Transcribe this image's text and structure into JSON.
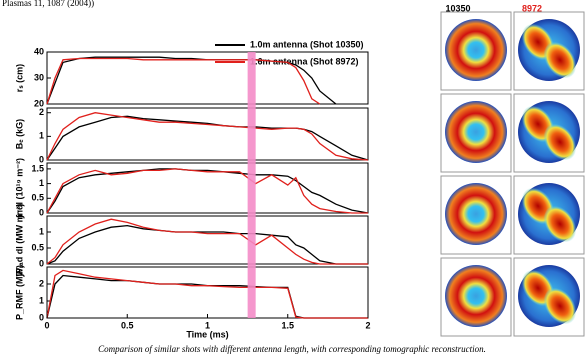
{
  "header_text": "Plasmas 11, 1087 (2004))",
  "chart_data": [
    {
      "type": "line",
      "ylabel": "rₛ (cm)",
      "x": [
        0,
        0.05,
        0.1,
        0.2,
        0.3,
        0.4,
        0.5,
        0.6,
        0.7,
        0.8,
        0.9,
        1.0,
        1.1,
        1.2,
        1.3,
        1.4,
        1.5,
        1.55,
        1.6,
        1.65,
        1.7,
        1.8,
        1.9,
        2.0
      ],
      "series": [
        {
          "name": "1.0m antenna (Shot 10350)",
          "color": "#000000",
          "values": [
            20,
            28,
            36,
            37.5,
            38,
            38,
            38,
            38,
            38,
            37.5,
            37.5,
            37,
            37,
            37,
            37,
            36.5,
            36,
            35,
            33,
            30,
            25,
            20,
            null,
            null
          ]
        },
        {
          "name": "1.6m antenna (Shot 8972)",
          "color": "#e0201c",
          "values": [
            20,
            30,
            37,
            37.5,
            37.5,
            37.5,
            37.5,
            37,
            37,
            37,
            37,
            37,
            37,
            37,
            37,
            36.5,
            36,
            34,
            29,
            22,
            20,
            null,
            null,
            null
          ]
        }
      ],
      "xlim": [
        0,
        2
      ],
      "ylim": [
        20,
        40
      ],
      "yticks": [
        20,
        30,
        40
      ],
      "shaded_xrange": [
        1.25,
        1.3
      ]
    },
    {
      "type": "line",
      "ylabel": "Bₑ (kG)",
      "x": [
        0,
        0.05,
        0.1,
        0.2,
        0.3,
        0.4,
        0.5,
        0.6,
        0.7,
        0.8,
        0.9,
        1.0,
        1.1,
        1.2,
        1.3,
        1.4,
        1.5,
        1.55,
        1.6,
        1.65,
        1.7,
        1.8,
        1.9,
        2.0
      ],
      "series": [
        {
          "color": "#000000",
          "values": [
            0,
            0.5,
            1.0,
            1.4,
            1.6,
            1.8,
            1.85,
            1.75,
            1.7,
            1.65,
            1.6,
            1.55,
            1.45,
            1.4,
            1.4,
            1.35,
            1.35,
            1.35,
            1.3,
            1.2,
            1.0,
            0.6,
            0.2,
            0
          ]
        },
        {
          "color": "#e0201c",
          "values": [
            0,
            0.7,
            1.3,
            1.8,
            2.0,
            1.9,
            1.8,
            1.7,
            1.6,
            1.6,
            1.55,
            1.5,
            1.45,
            1.4,
            1.35,
            1.3,
            1.35,
            1.35,
            1.3,
            1.1,
            0.7,
            0.2,
            0.05,
            0
          ]
        }
      ],
      "xlim": [
        0,
        2
      ],
      "ylim": [
        0,
        2.2
      ],
      "yticks": [
        0,
        1,
        2
      ]
    },
    {
      "type": "line",
      "ylabel": "∫ndl (10¹⁹ m⁻²)",
      "x": [
        0,
        0.05,
        0.1,
        0.2,
        0.3,
        0.4,
        0.5,
        0.6,
        0.7,
        0.8,
        0.9,
        1.0,
        1.1,
        1.2,
        1.3,
        1.4,
        1.5,
        1.55,
        1.6,
        1.65,
        1.7,
        1.8,
        1.9,
        2.0
      ],
      "series": [
        {
          "color": "#000000",
          "values": [
            0,
            0.4,
            0.9,
            1.2,
            1.3,
            1.35,
            1.4,
            1.45,
            1.5,
            1.5,
            1.45,
            1.45,
            1.4,
            1.35,
            1.3,
            1.3,
            1.25,
            1.1,
            0.9,
            0.7,
            0.6,
            0.3,
            0.1,
            0
          ]
        },
        {
          "color": "#e0201c",
          "values": [
            0,
            0.5,
            1.0,
            1.3,
            1.45,
            1.3,
            1.35,
            1.45,
            1.45,
            1.5,
            1.45,
            1.4,
            1.4,
            1.4,
            1.0,
            1.3,
            0.95,
            1.2,
            0.6,
            0.3,
            0.15,
            0.05,
            0,
            0
          ]
        }
      ],
      "xlim": [
        0,
        2
      ],
      "ylim": [
        0,
        1.7
      ],
      "yticks": [
        0,
        0.5,
        1,
        1.5
      ]
    },
    {
      "type": "line",
      "ylabel": "∫Pᵣₐd dl (MW m⁻²)",
      "x": [
        0,
        0.05,
        0.1,
        0.2,
        0.3,
        0.4,
        0.5,
        0.6,
        0.7,
        0.8,
        0.9,
        1.0,
        1.1,
        1.2,
        1.3,
        1.4,
        1.5,
        1.55,
        1.6,
        1.65,
        1.7,
        1.8,
        1.9,
        2.0
      ],
      "series": [
        {
          "color": "#000000",
          "values": [
            0,
            0.1,
            0.4,
            0.8,
            1.0,
            1.15,
            1.2,
            1.1,
            1.05,
            1.0,
            1.0,
            1.0,
            1.0,
            0.95,
            0.95,
            0.9,
            0.85,
            0.6,
            0.5,
            0.3,
            0.1,
            0,
            0,
            0
          ]
        },
        {
          "color": "#e0201c",
          "values": [
            0,
            0.2,
            0.6,
            1.0,
            1.25,
            1.4,
            1.3,
            1.15,
            1.05,
            1.0,
            1.0,
            0.95,
            0.95,
            0.95,
            0.6,
            0.9,
            0.5,
            0.3,
            0.15,
            0.05,
            0,
            0,
            0,
            0
          ]
        }
      ],
      "xlim": [
        0,
        2
      ],
      "ylim": [
        0,
        1.5
      ],
      "yticks": [
        0,
        0.5,
        1
      ]
    },
    {
      "type": "line",
      "ylabel": "P_RMF (MW)",
      "xlabel": "Time (ms)",
      "x": [
        0,
        0.05,
        0.1,
        0.2,
        0.3,
        0.4,
        0.5,
        0.6,
        0.7,
        0.8,
        0.9,
        1.0,
        1.1,
        1.2,
        1.3,
        1.4,
        1.5,
        1.55,
        1.6,
        1.65,
        1.7,
        1.8,
        1.9,
        2.0
      ],
      "series": [
        {
          "color": "#000000",
          "values": [
            0,
            2.0,
            2.5,
            2.4,
            2.3,
            2.2,
            2.2,
            2.1,
            2.0,
            2.0,
            2.0,
            1.9,
            1.9,
            1.9,
            1.85,
            1.8,
            1.8,
            0.1,
            0,
            0,
            0,
            0,
            0,
            0
          ]
        },
        {
          "color": "#e0201c",
          "values": [
            0,
            2.5,
            2.8,
            2.6,
            2.4,
            2.3,
            2.2,
            2.1,
            2.0,
            2.0,
            1.9,
            1.9,
            1.85,
            1.8,
            1.8,
            1.8,
            1.75,
            0.05,
            0,
            0,
            0,
            0,
            0,
            0
          ]
        }
      ],
      "xlim": [
        0,
        2
      ],
      "ylim": [
        0,
        3
      ],
      "yticks": [
        0,
        1,
        2
      ],
      "xticks": [
        0,
        0.5,
        1,
        1.5,
        2
      ]
    }
  ],
  "images": {
    "labels": [
      "10350",
      "8972"
    ]
  },
  "caption": "Comparison of similar shots with different antenna length, with corresponding tomographic reconstruction."
}
